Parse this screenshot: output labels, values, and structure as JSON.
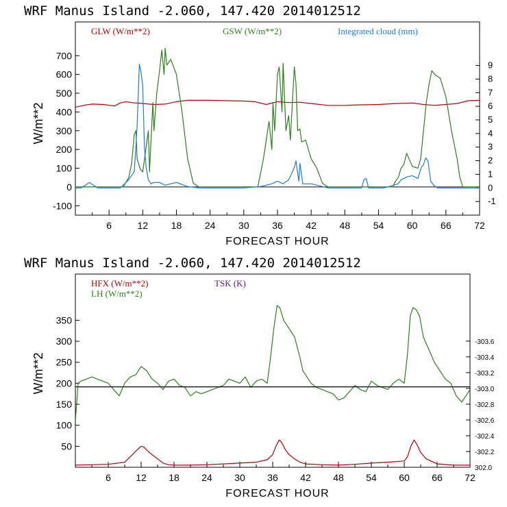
{
  "chart_data": [
    {
      "type": "line",
      "title": "WRF  Manus Island  -2.060, 147.420  2014012512",
      "xlabel": "FORECAST HOUR",
      "ylabel": "W/m**2",
      "xlim": [
        0,
        72
      ],
      "ylim": [
        -150,
        880
      ],
      "y2lim": [
        -2,
        12.2
      ],
      "x_ticks": [
        6,
        12,
        18,
        24,
        30,
        36,
        42,
        48,
        54,
        60,
        66,
        72
      ],
      "y_ticks": [
        -100,
        0,
        100,
        200,
        300,
        400,
        500,
        600,
        700
      ],
      "y2_ticks": [
        -1,
        0,
        1,
        2,
        3,
        4,
        5,
        6,
        7,
        8,
        9
      ],
      "legend": [
        "GLW (W/m**2)",
        "GSW (W/m**2)",
        "Integrated cloud (mm)"
      ],
      "series": [
        {
          "name": "GLW (W/m**2)",
          "color": "#b00000",
          "axis": "left",
          "x": [
            0,
            1,
            2,
            3,
            5,
            7,
            8,
            9,
            10,
            12,
            14,
            16,
            18,
            20,
            24,
            27,
            30,
            32,
            34,
            36,
            38,
            40,
            42,
            45,
            48,
            51,
            54,
            57,
            60,
            62,
            64,
            66,
            68,
            70,
            72
          ],
          "y": [
            425,
            432,
            438,
            442,
            440,
            432,
            448,
            455,
            450,
            445,
            440,
            442,
            455,
            462,
            462,
            460,
            458,
            455,
            440,
            455,
            450,
            452,
            445,
            435,
            435,
            438,
            440,
            445,
            448,
            440,
            435,
            440,
            445,
            460,
            462
          ]
        },
        {
          "name": "GSW (W/m**2)",
          "color": "#2e7d1e",
          "axis": "left",
          "x": [
            0,
            8.5,
            9.5,
            10,
            10.5,
            10.8,
            11,
            11.5,
            12,
            13,
            13.2,
            13.8,
            14,
            14.5,
            15,
            15.4,
            15.8,
            16,
            16.3,
            17,
            18,
            19,
            20,
            21,
            22,
            32.5,
            33.5,
            34,
            34.5,
            35,
            35.2,
            35.5,
            36,
            36.3,
            36.8,
            37,
            37.5,
            38,
            38.3,
            39,
            39.3,
            39.6,
            40,
            40.3,
            41,
            42,
            43,
            44,
            45,
            56.5,
            57,
            57.5,
            58,
            58.5,
            59,
            60,
            61,
            61.5,
            62,
            62.5,
            63,
            63.5,
            64,
            65,
            66,
            67,
            68,
            68.5,
            69,
            72
          ],
          "y": [
            0,
            0,
            50,
            120,
            280,
            300,
            150,
            100,
            80,
            300,
            80,
            450,
            300,
            500,
            620,
            730,
            600,
            740,
            650,
            680,
            600,
            400,
            150,
            20,
            0,
            0,
            150,
            250,
            350,
            200,
            450,
            300,
            600,
            640,
            400,
            660,
            300,
            380,
            250,
            640,
            550,
            300,
            310,
            240,
            250,
            150,
            100,
            20,
            0,
            0,
            30,
            50,
            100,
            120,
            180,
            110,
            100,
            150,
            300,
            450,
            550,
            620,
            600,
            580,
            480,
            300,
            150,
            50,
            0,
            0
          ]
        },
        {
          "name": "Integrated cloud (mm)",
          "color": "#1e7acc",
          "axis": "right",
          "x": [
            0,
            1,
            1.8,
            2.5,
            3.2,
            4,
            8,
            9.5,
            10.5,
            11,
            11.4,
            11.7,
            12,
            12.3,
            12.6,
            13,
            13.5,
            14,
            15,
            16,
            18,
            20,
            22,
            25,
            30,
            33,
            35,
            36,
            37,
            38,
            39,
            39.3,
            39.8,
            40,
            40.5,
            42,
            44,
            45,
            51,
            51.4,
            51.8,
            52.2,
            55,
            57.5,
            58,
            59,
            60,
            61,
            61.6,
            62,
            62.4,
            62.8,
            63.3,
            63.8,
            64.5,
            66,
            72
          ],
          "y": [
            0,
            0,
            0.2,
            0.4,
            0.2,
            0,
            0,
            0.6,
            1.2,
            4.5,
            9.1,
            8.5,
            7.5,
            3,
            1.5,
            0.6,
            0.3,
            0.4,
            0.4,
            0.2,
            0.4,
            0.1,
            0,
            0,
            0,
            0.1,
            0.3,
            0.5,
            0.3,
            0.6,
            1.5,
            2,
            0.5,
            1.8,
            0.3,
            0.3,
            0.1,
            0,
            0,
            0.6,
            0.7,
            0,
            0,
            0.3,
            0.6,
            0.8,
            0.9,
            0.7,
            1.5,
            1.7,
            2.2,
            2,
            0.5,
            0.2,
            0,
            0,
            0
          ]
        }
      ]
    },
    {
      "type": "line",
      "title": "WRF  Manus Island  -2.060, 147.420  2014012512",
      "xlabel": "FORECAST HOUR",
      "ylabel": "W/m**2",
      "xlim": [
        0,
        72
      ],
      "ylim": [
        0,
        460
      ],
      "y2lim": [
        302.0,
        304.45
      ],
      "x_ticks": [
        6,
        12,
        18,
        24,
        30,
        36,
        42,
        48,
        54,
        60,
        66,
        72
      ],
      "y_ticks": [
        50,
        100,
        150,
        200,
        250,
        300,
        350
      ],
      "y2_ticks": [
        302.0,
        302.2,
        302.4,
        302.6,
        302.8,
        303.0,
        303.2,
        303.4,
        303.6
      ],
      "y2_tick_labels": [
        "302.0",
        "-302.2",
        "-302.4",
        "-302.6",
        "-302.8",
        "-303.0",
        "-303.2",
        "-303.4",
        "-303.6"
      ],
      "legend": [
        "HFX (W/m**2)",
        "LH  (W/m**2)",
        "TSK (K)"
      ],
      "series": [
        {
          "name": "HFX (W/m**2)",
          "color": "#b00000",
          "axis": "left",
          "x": [
            0,
            3,
            6,
            9,
            10,
            11,
            12,
            12.5,
            13.5,
            15,
            16,
            17,
            18,
            21,
            24,
            27,
            30,
            33,
            35,
            36,
            36.6,
            37.2,
            37.6,
            38.3,
            39,
            40,
            41,
            42,
            45,
            48,
            51,
            54,
            57,
            60,
            60.6,
            61.2,
            61.8,
            62.3,
            63,
            64,
            66,
            69,
            72
          ],
          "y": [
            5,
            6,
            7,
            12,
            25,
            38,
            50,
            48,
            35,
            20,
            10,
            6,
            5,
            5,
            6,
            8,
            10,
            12,
            18,
            30,
            50,
            65,
            60,
            42,
            30,
            20,
            12,
            8,
            6,
            5,
            7,
            10,
            12,
            15,
            25,
            50,
            65,
            55,
            35,
            20,
            8,
            5,
            5
          ]
        },
        {
          "name": "LH  (W/m**2)",
          "color": "#2e7d1e",
          "axis": "left",
          "x": [
            0,
            0.5,
            1,
            2,
            3,
            4,
            5,
            6,
            7,
            8,
            9,
            10,
            11,
            12,
            13,
            14,
            15,
            16,
            17,
            18,
            19,
            20,
            21,
            22,
            23,
            24,
            25,
            26,
            27,
            28,
            29,
            30,
            31,
            32,
            33,
            34,
            35,
            35.6,
            36.2,
            36.8,
            37.3,
            38,
            39,
            40,
            41,
            41.5,
            42,
            43,
            44,
            45,
            46,
            47,
            48,
            49,
            50,
            51,
            52,
            53,
            54,
            55,
            56,
            57,
            58,
            59,
            60,
            60.6,
            61.1,
            61.6,
            62.2,
            62.8,
            63.5,
            64.5,
            65.5,
            66.5,
            67.5,
            68.5,
            69.5,
            70.5,
            71,
            72
          ],
          "y": [
            110,
            200,
            205,
            210,
            215,
            210,
            205,
            200,
            185,
            170,
            200,
            215,
            220,
            240,
            230,
            210,
            200,
            185,
            205,
            210,
            195,
            190,
            170,
            180,
            175,
            180,
            185,
            190,
            195,
            210,
            205,
            200,
            215,
            190,
            205,
            210,
            200,
            260,
            330,
            385,
            380,
            350,
            330,
            310,
            260,
            230,
            220,
            200,
            190,
            185,
            180,
            175,
            160,
            165,
            180,
            195,
            185,
            180,
            205,
            195,
            190,
            185,
            200,
            210,
            200,
            270,
            360,
            380,
            375,
            360,
            310,
            280,
            250,
            230,
            210,
            200,
            170,
            155,
            165,
            185
          ]
        },
        {
          "name": "TSK (K)",
          "color": "#000000",
          "axis": "right",
          "x": [
            0,
            72
          ],
          "y": [
            303.02,
            303.02
          ]
        }
      ]
    }
  ]
}
